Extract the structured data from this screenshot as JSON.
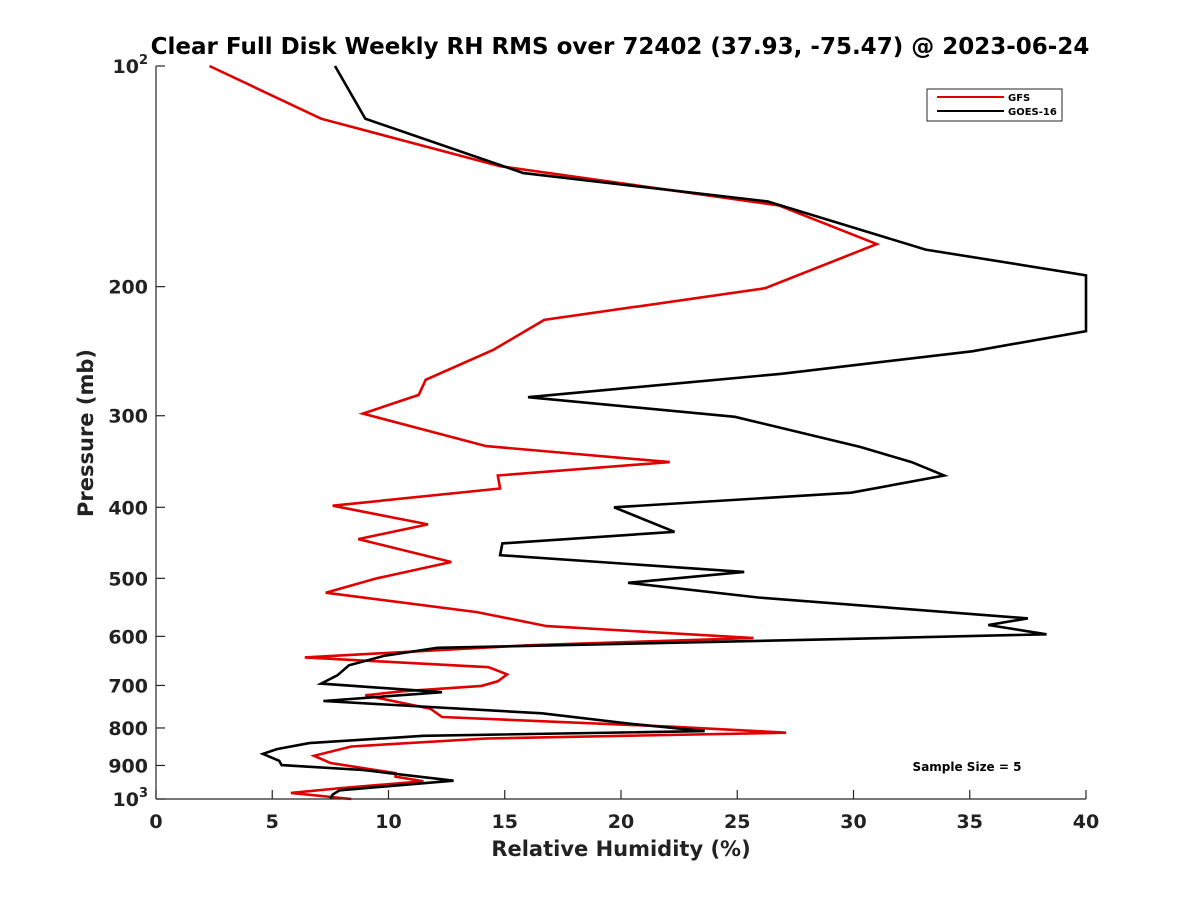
{
  "chart_data": {
    "type": "line",
    "title": "Clear Full Disk Weekly RH RMS over 72402 (37.93, -75.47) @ 2023-06-24",
    "xlabel": "Relative Humidity (%)",
    "ylabel": "Pressure (mb)",
    "xlim": [
      0,
      40
    ],
    "ylim": [
      100,
      1000
    ],
    "yscale": "log",
    "y_reversed": true,
    "xticks": [
      0,
      5,
      10,
      15,
      20,
      25,
      30,
      35,
      40
    ],
    "yticks": [
      {
        "value": 100,
        "base": "10",
        "exp": "2"
      },
      {
        "value": 200,
        "label": "200"
      },
      {
        "value": 300,
        "label": "300"
      },
      {
        "value": 400,
        "label": "400"
      },
      {
        "value": 500,
        "label": "500"
      },
      {
        "value": 600,
        "label": "600"
      },
      {
        "value": 700,
        "label": "700"
      },
      {
        "value": 800,
        "label": "800"
      },
      {
        "value": 900,
        "label": "900"
      },
      {
        "value": 1000,
        "base": "10",
        "exp": "3"
      }
    ],
    "legend_position": "top-right",
    "annotation": "Sample Size = 5",
    "series": [
      {
        "name": "GFS",
        "color": "#e00000",
        "points": [
          [
            2.3,
            100
          ],
          [
            7.1,
            118
          ],
          [
            14.8,
            137
          ],
          [
            26.8,
            155
          ],
          [
            31.0,
            175
          ],
          [
            26.2,
            201
          ],
          [
            16.7,
            222
          ],
          [
            14.5,
            244
          ],
          [
            11.6,
            268
          ],
          [
            11.3,
            281
          ],
          [
            8.9,
            298
          ],
          [
            14.2,
            330
          ],
          [
            22.1,
            347
          ],
          [
            14.7,
            362
          ],
          [
            14.8,
            377
          ],
          [
            7.6,
            398
          ],
          [
            11.7,
            422
          ],
          [
            8.7,
            442
          ],
          [
            12.7,
            475
          ],
          [
            9.5,
            500
          ],
          [
            7.3,
            523
          ],
          [
            13.8,
            556
          ],
          [
            16.8,
            581
          ],
          [
            25.7,
            603
          ],
          [
            16.0,
            617
          ],
          [
            6.4,
            641
          ],
          [
            14.3,
            661
          ],
          [
            15.1,
            676
          ],
          [
            14.7,
            691
          ],
          [
            14.0,
            701
          ],
          [
            10.6,
            713
          ],
          [
            9.0,
            722
          ],
          [
            11.8,
            753
          ],
          [
            12.3,
            773
          ],
          [
            22.3,
            797
          ],
          [
            27.1,
            812
          ],
          [
            14.2,
            827
          ],
          [
            8.4,
            848
          ],
          [
            6.8,
            873
          ],
          [
            7.5,
            893
          ],
          [
            10.3,
            922
          ],
          [
            10.3,
            932
          ],
          [
            11.5,
            946
          ],
          [
            8.0,
            966
          ],
          [
            5.8,
            981
          ],
          [
            8.4,
            1000
          ]
        ]
      },
      {
        "name": "GOES-16",
        "color": "#000000",
        "points": [
          [
            7.7,
            100
          ],
          [
            9.0,
            118
          ],
          [
            15.8,
            140
          ],
          [
            26.3,
            153
          ],
          [
            33.1,
            178
          ],
          [
            40.0,
            193
          ],
          [
            40.5,
            230
          ],
          [
            35.1,
            245
          ],
          [
            26.9,
            263
          ],
          [
            16.0,
            283
          ],
          [
            24.9,
            301
          ],
          [
            30.3,
            331
          ],
          [
            32.5,
            347
          ],
          [
            33.9,
            362
          ],
          [
            29.9,
            382
          ],
          [
            19.7,
            400
          ],
          [
            22.3,
            432
          ],
          [
            14.9,
            448
          ],
          [
            14.8,
            465
          ],
          [
            25.3,
            490
          ],
          [
            20.3,
            507
          ],
          [
            25.9,
            531
          ],
          [
            37.5,
            567
          ],
          [
            35.8,
            579
          ],
          [
            38.3,
            596
          ],
          [
            28.5,
            606
          ],
          [
            12.1,
            622
          ],
          [
            9.8,
            638
          ],
          [
            8.3,
            657
          ],
          [
            7.8,
            678
          ],
          [
            7.1,
            696
          ],
          [
            12.3,
            715
          ],
          [
            7.2,
            735
          ],
          [
            16.6,
            764
          ],
          [
            20.5,
            790
          ],
          [
            23.6,
            808
          ],
          [
            11.5,
            820
          ],
          [
            6.6,
            839
          ],
          [
            5.2,
            855
          ],
          [
            4.6,
            868
          ],
          [
            5.3,
            887
          ],
          [
            5.4,
            899
          ],
          [
            8.9,
            913
          ],
          [
            12.8,
            944
          ],
          [
            7.9,
            973
          ],
          [
            7.6,
            986
          ],
          [
            7.5,
            1000
          ]
        ]
      }
    ]
  }
}
